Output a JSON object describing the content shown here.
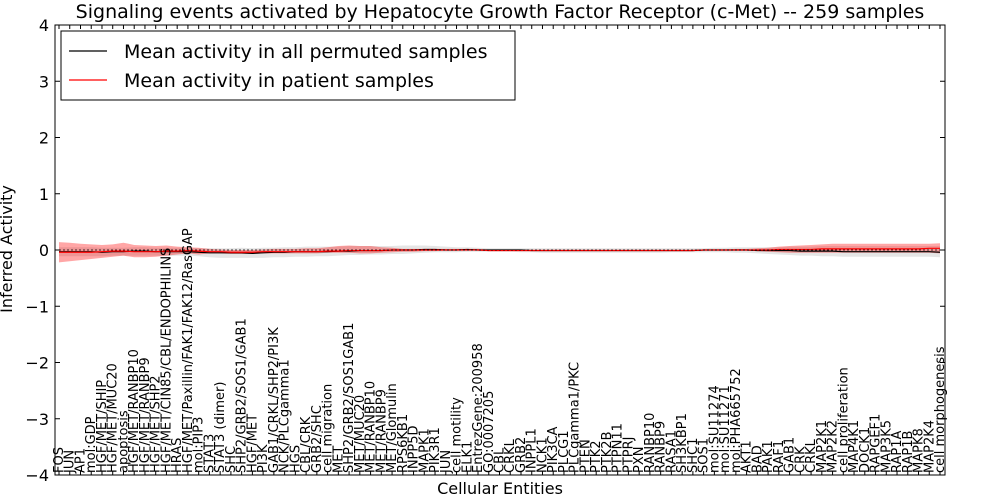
{
  "chart_data": {
    "type": "line",
    "title": "Signaling events activated by Hepatocyte Growth Factor Receptor (c-Met) -- 259 samples",
    "xlabel": "Cellular Entities",
    "ylabel": "Inferred Activity",
    "ylim": [
      -4,
      4
    ],
    "yticks": [
      -4,
      -3,
      -2,
      -1,
      0,
      1,
      2,
      3,
      4
    ],
    "ytick_labels": [
      "−4",
      "−3",
      "−2",
      "−1",
      "0",
      "1",
      "2",
      "3",
      "4"
    ],
    "grid": false,
    "legend_position": "top-left",
    "legend": [
      {
        "label": "Mean activity in all permuted samples",
        "color": "#000000"
      },
      {
        "label": "Mean activity in patient samples",
        "color": "#ff0000"
      }
    ],
    "categories": [
      "FOS",
      "JUN",
      "AP1",
      "mol:GDP",
      "HGF/MET/SHIP",
      "HGF/MET/MUC20",
      "apoptosis",
      "HGF/MET/RANBP10",
      "HGF/MET/RANBP9",
      "HGF/MET/SHP2",
      "HGF/MET/CIN85/CBL/ENDOPHILINS",
      "HRAS",
      "HGF/MET/Paxillin/FAK1/FAK12/RasGAP",
      "mol:PIP3",
      "STAT3",
      "STAT3 (dimer)",
      "SHC",
      "SHP2/GRB2/SOS1/GAB1",
      "HGF/MET",
      "PI3K",
      "GAB1/CRKL/SHP2/PI3K",
      "NCK/PLCgamma1",
      "HGS",
      "CBL/CRK",
      "GRB2/SHC",
      "cell migration",
      "MET",
      "SHP2/GRB2/SOS1GAB1",
      "MET/MUC20",
      "MET/RANBP10",
      "MET/RANBP9",
      "MET/Glomulin",
      "RPS6KB1",
      "INPP5D",
      "MAPK1",
      "PIK3R1",
      "JUN",
      "cell motility",
      "ELK1",
      "EntrezGene:200958",
      "GO:0007205",
      "CBL",
      "CRKL",
      "GRB2",
      "INPPL1",
      "NCK1",
      "PIK3CA",
      "PLCG1",
      "PLCgamma1/PKC",
      "PTEN",
      "PTK2",
      "PTK2B",
      "PTPN11",
      "PTPRJ",
      "PXN",
      "RANBP10",
      "RANBP9",
      "RASA1",
      "SH3KBP1",
      "SHC1",
      "SOS1",
      "mol:SU11274",
      "mol:SU11271",
      "mol:PHA665752",
      "AKT1",
      "BAD",
      "PAK1",
      "RAF1",
      "GAB1",
      "CRK",
      "CRKL",
      "MAP2K1",
      "MAP2K2",
      "cell proliferation",
      "MAP4K1",
      "DOCK1",
      "RAPGEF1",
      "MAP3K5",
      "RAP1A",
      "RAP1B",
      "MAPK8",
      "MAP2K4",
      "cell morphogenesis"
    ],
    "series": [
      {
        "name": "Mean activity in all permuted samples",
        "color": "#000000",
        "values": [
          -0.03,
          -0.03,
          -0.03,
          -0.03,
          -0.04,
          -0.03,
          -0.03,
          -0.02,
          -0.02,
          -0.03,
          -0.03,
          -0.03,
          -0.03,
          -0.04,
          -0.05,
          -0.05,
          -0.05,
          -0.05,
          -0.06,
          -0.05,
          -0.04,
          -0.04,
          -0.03,
          -0.03,
          -0.03,
          -0.03,
          -0.02,
          -0.02,
          -0.01,
          -0.01,
          -0.01,
          0.0,
          0.0,
          0.0,
          0.01,
          0.01,
          0.0,
          0.0,
          0.01,
          0.0,
          0.0,
          0.0,
          0.0,
          0.0,
          -0.01,
          -0.01,
          -0.01,
          -0.01,
          -0.01,
          -0.01,
          -0.01,
          -0.01,
          -0.01,
          -0.01,
          -0.01,
          -0.01,
          -0.01,
          -0.01,
          -0.01,
          -0.01,
          0.0,
          0.0,
          0.0,
          0.0,
          0.0,
          -0.01,
          -0.01,
          -0.01,
          -0.01,
          -0.02,
          -0.02,
          -0.02,
          -0.02,
          -0.03,
          -0.03,
          -0.03,
          -0.03,
          -0.03,
          -0.03,
          -0.03,
          -0.03,
          -0.03,
          -0.04
        ],
        "band_low": [
          -0.11,
          -0.11,
          -0.11,
          -0.11,
          -0.11,
          -0.1,
          -0.1,
          -0.1,
          -0.1,
          -0.1,
          -0.11,
          -0.1,
          -0.1,
          -0.11,
          -0.13,
          -0.14,
          -0.14,
          -0.14,
          -0.14,
          -0.14,
          -0.13,
          -0.13,
          -0.12,
          -0.12,
          -0.11,
          -0.11,
          -0.1,
          -0.09,
          -0.09,
          -0.08,
          -0.08,
          -0.07,
          -0.07,
          -0.06,
          -0.05,
          -0.04,
          -0.04,
          -0.04,
          -0.03,
          -0.03,
          -0.03,
          -0.03,
          -0.03,
          -0.04,
          -0.04,
          -0.05,
          -0.05,
          -0.05,
          -0.05,
          -0.05,
          -0.05,
          -0.05,
          -0.05,
          -0.05,
          -0.05,
          -0.05,
          -0.05,
          -0.04,
          -0.04,
          -0.04,
          -0.04,
          -0.04,
          -0.04,
          -0.05,
          -0.05,
          -0.06,
          -0.07,
          -0.08,
          -0.09,
          -0.1,
          -0.1,
          -0.11,
          -0.11,
          -0.12,
          -0.12,
          -0.12,
          -0.12,
          -0.12,
          -0.12,
          -0.12,
          -0.12,
          -0.12,
          -0.13
        ],
        "band_high": [
          0.05,
          0.05,
          0.05,
          0.05,
          0.04,
          0.04,
          0.04,
          0.05,
          0.05,
          0.04,
          0.04,
          0.04,
          0.04,
          0.03,
          0.03,
          0.03,
          0.03,
          0.04,
          0.03,
          0.04,
          0.04,
          0.05,
          0.05,
          0.06,
          0.06,
          0.06,
          0.06,
          0.07,
          0.07,
          0.07,
          0.07,
          0.07,
          0.08,
          0.08,
          0.08,
          0.07,
          0.06,
          0.05,
          0.05,
          0.04,
          0.03,
          0.03,
          0.03,
          0.03,
          0.03,
          0.03,
          0.03,
          0.03,
          0.03,
          0.03,
          0.03,
          0.03,
          0.03,
          0.03,
          0.03,
          0.03,
          0.03,
          0.03,
          0.03,
          0.03,
          0.03,
          0.04,
          0.04,
          0.05,
          0.05,
          0.05,
          0.05,
          0.05,
          0.06,
          0.06,
          0.06,
          0.07,
          0.07,
          0.07,
          0.07,
          0.07,
          0.07,
          0.07,
          0.07,
          0.07,
          0.07,
          0.07,
          0.07
        ]
      },
      {
        "name": "Mean activity in patient samples",
        "color": "#ff0000",
        "values": [
          -0.04,
          -0.04,
          -0.04,
          -0.04,
          -0.03,
          -0.02,
          -0.02,
          -0.03,
          -0.03,
          -0.03,
          -0.02,
          -0.02,
          -0.01,
          -0.02,
          -0.03,
          -0.03,
          -0.04,
          -0.04,
          -0.04,
          -0.03,
          -0.03,
          -0.03,
          -0.03,
          -0.03,
          -0.03,
          -0.02,
          -0.02,
          -0.01,
          -0.01,
          -0.01,
          -0.01,
          0.0,
          0.0,
          0.0,
          0.0,
          0.0,
          0.0,
          0.0,
          0.0,
          0.0,
          -0.01,
          -0.01,
          -0.01,
          -0.01,
          -0.01,
          -0.01,
          -0.01,
          -0.01,
          -0.01,
          -0.01,
          -0.01,
          -0.01,
          -0.01,
          -0.01,
          -0.01,
          -0.01,
          -0.01,
          -0.01,
          -0.01,
          -0.01,
          0.0,
          0.0,
          0.0,
          0.0,
          0.0,
          0.0,
          0.0,
          0.01,
          0.01,
          0.01,
          0.01,
          0.02,
          0.02,
          0.02,
          0.02,
          0.02,
          0.02,
          0.02,
          0.02,
          0.02,
          0.02,
          0.03,
          0.03
        ],
        "band_low": [
          -0.22,
          -0.2,
          -0.18,
          -0.16,
          -0.14,
          -0.12,
          -0.1,
          -0.13,
          -0.13,
          -0.12,
          -0.1,
          -0.08,
          -0.06,
          -0.08,
          -0.06,
          -0.06,
          -0.07,
          -0.07,
          -0.07,
          -0.06,
          -0.06,
          -0.06,
          -0.06,
          -0.06,
          -0.06,
          -0.05,
          -0.05,
          -0.05,
          -0.06,
          -0.06,
          -0.05,
          -0.04,
          -0.03,
          -0.03,
          -0.02,
          -0.02,
          -0.01,
          -0.01,
          -0.01,
          -0.01,
          -0.02,
          -0.02,
          -0.02,
          -0.02,
          -0.02,
          -0.02,
          -0.02,
          -0.02,
          -0.02,
          -0.02,
          -0.02,
          -0.02,
          -0.02,
          -0.02,
          -0.02,
          -0.02,
          -0.02,
          -0.02,
          -0.02,
          -0.02,
          -0.01,
          -0.01,
          -0.01,
          -0.01,
          -0.01,
          -0.02,
          -0.03,
          -0.04,
          -0.05,
          -0.05,
          -0.05,
          -0.05,
          -0.05,
          -0.05,
          -0.05,
          -0.05,
          -0.05,
          -0.05,
          -0.05,
          -0.05,
          -0.05,
          -0.05,
          -0.06
        ],
        "band_high": [
          0.14,
          0.13,
          0.11,
          0.1,
          0.09,
          0.1,
          0.13,
          0.09,
          0.08,
          0.07,
          0.08,
          0.06,
          0.05,
          0.04,
          0.02,
          0.01,
          0.0,
          0.0,
          0.0,
          0.01,
          0.02,
          0.02,
          0.02,
          0.03,
          0.03,
          0.05,
          0.07,
          0.08,
          0.07,
          0.07,
          0.05,
          0.04,
          0.02,
          0.02,
          0.02,
          0.02,
          0.02,
          0.02,
          0.02,
          0.02,
          0.01,
          0.01,
          0.01,
          0.01,
          0.01,
          0.01,
          0.01,
          0.01,
          0.01,
          0.01,
          0.01,
          0.01,
          0.01,
          0.01,
          0.01,
          0.01,
          0.01,
          0.01,
          0.01,
          0.01,
          0.01,
          0.01,
          0.01,
          0.02,
          0.02,
          0.03,
          0.04,
          0.06,
          0.07,
          0.08,
          0.09,
          0.1,
          0.11,
          0.11,
          0.11,
          0.11,
          0.11,
          0.11,
          0.11,
          0.11,
          0.11,
          0.11,
          0.12
        ]
      }
    ]
  }
}
